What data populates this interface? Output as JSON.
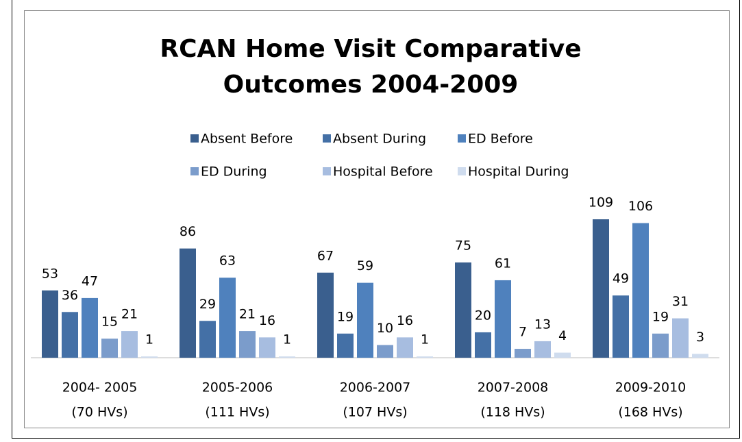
{
  "chart_data": {
    "type": "bar",
    "title": "RCAN Home Visit Comparative Outcomes 2004-2009",
    "categories": [
      [
        "2004- 2005",
        "(70 HVs)"
      ],
      [
        "2005-2006",
        "(111 HVs)"
      ],
      [
        "2006-2007",
        "(107 HVs)"
      ],
      [
        "2007-2008",
        "(118 HVs)"
      ],
      [
        "2009-2010",
        "(168 HVs)"
      ]
    ],
    "series": [
      {
        "name": "Absent Before",
        "color": "#3a5f8e",
        "values": [
          53,
          86,
          67,
          75,
          109
        ]
      },
      {
        "name": "Absent During",
        "color": "#4470a6",
        "values": [
          36,
          29,
          19,
          20,
          49
        ]
      },
      {
        "name": "ED Before",
        "color": "#4f81bd",
        "values": [
          47,
          63,
          59,
          61,
          106
        ]
      },
      {
        "name": "ED During",
        "color": "#7b9ccb",
        "values": [
          15,
          21,
          10,
          7,
          19
        ]
      },
      {
        "name": "Hospital Before",
        "color": "#a7bde0",
        "values": [
          21,
          16,
          16,
          13,
          31
        ]
      },
      {
        "name": "Hospital During",
        "color": "#cfdcee",
        "values": [
          1,
          1,
          1,
          4,
          3
        ]
      }
    ],
    "legend": "top"
  }
}
